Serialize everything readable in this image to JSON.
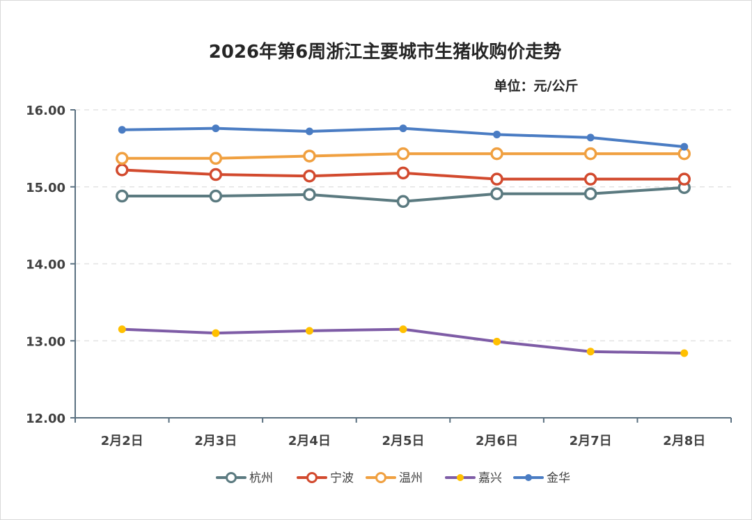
{
  "chart_data": {
    "type": "line",
    "title": "2026年第6周浙江主要城市生猪收购价走势",
    "unit_label": "单位：元/公斤",
    "categories": [
      "2月2日",
      "2月3日",
      "2月4日",
      "2月5日",
      "2月6日",
      "2月7日",
      "2月8日"
    ],
    "ylim": [
      12.0,
      16.0
    ],
    "yticks": [
      "12.00",
      "13.00",
      "14.00",
      "15.00",
      "16.00"
    ],
    "grid": true,
    "legend_position": "bottom",
    "series": [
      {
        "name": "杭州",
        "color": "#5b7a80",
        "marker": "hollow",
        "values": [
          14.88,
          14.88,
          14.9,
          14.81,
          14.91,
          14.91,
          14.99
        ]
      },
      {
        "name": "宁波",
        "color": "#d24a2e",
        "marker": "hollow",
        "values": [
          15.22,
          15.16,
          15.14,
          15.18,
          15.1,
          15.1,
          15.1
        ]
      },
      {
        "name": "温州",
        "color": "#f0a040",
        "marker": "hollow",
        "values": [
          15.37,
          15.37,
          15.4,
          15.43,
          15.43,
          15.43,
          15.43
        ]
      },
      {
        "name": "嘉兴",
        "color": "#7e5ca6",
        "marker": "filled",
        "marker_color": "#ffc000",
        "values": [
          13.15,
          13.1,
          13.13,
          13.15,
          12.99,
          12.86,
          12.84
        ]
      },
      {
        "name": "金华",
        "color": "#4a7cc3",
        "marker": "filled",
        "marker_color": "#4a7cc3",
        "values": [
          15.74,
          15.76,
          15.72,
          15.76,
          15.68,
          15.64,
          15.52
        ]
      }
    ]
  }
}
